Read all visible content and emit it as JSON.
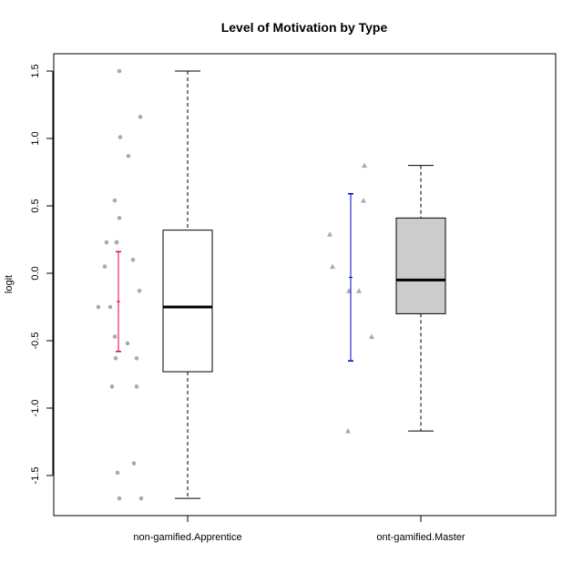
{
  "chart_data": {
    "type": "box",
    "title": "Level of Motivation by Type",
    "xlabel": "",
    "ylabel": "logit",
    "ylim": [
      -1.8,
      1.6
    ],
    "yticks": [
      -1.5,
      -1.0,
      -0.5,
      0.0,
      0.5,
      1.0,
      1.5
    ],
    "ytick_labels": [
      "-1.5",
      "-1.0",
      "-0.5",
      "0.0",
      "0.5",
      "1.0",
      "1.5"
    ],
    "categories": [
      "non-gamified.Apprentice",
      "ont-gamified.Master"
    ],
    "grid": false,
    "colors": {
      "box_fill": [
        "#ffffff",
        "#cccccc"
      ],
      "errorbar": [
        "#e0003c",
        "#0000cc"
      ],
      "points": "#aaaaaa"
    },
    "boxes": [
      {
        "category": "non-gamified.Apprentice",
        "whisker_low": -1.67,
        "q1": -0.73,
        "median": -0.25,
        "q3": 0.32,
        "whisker_high": 1.5
      },
      {
        "category": "ont-gamified.Master",
        "whisker_low": -1.17,
        "q1": -0.3,
        "median": -0.05,
        "q3": 0.41,
        "whisker_high": 0.8
      }
    ],
    "errorbars": [
      {
        "category": "non-gamified.Apprentice",
        "mean": -0.21,
        "low": -0.58,
        "high": 0.16
      },
      {
        "category": "ont-gamified.Master",
        "mean": -0.03,
        "low": -0.65,
        "high": 0.59
      }
    ],
    "points": [
      {
        "category": "non-gamified.Apprentice",
        "marker": "circle",
        "values": [
          1.5,
          1.16,
          1.01,
          0.87,
          0.54,
          0.41,
          0.23,
          0.23,
          0.23,
          0.1,
          0.05,
          -0.13,
          -0.25,
          -0.25,
          -0.47,
          -0.52,
          -0.63,
          -0.63,
          -0.84,
          -0.84,
          -1.41,
          -1.48,
          -1.67,
          -1.67
        ]
      },
      {
        "category": "ont-gamified.Master",
        "marker": "triangle",
        "values": [
          0.8,
          0.54,
          0.29,
          0.05,
          -0.13,
          -0.13,
          -0.47,
          -1.17
        ]
      }
    ]
  }
}
